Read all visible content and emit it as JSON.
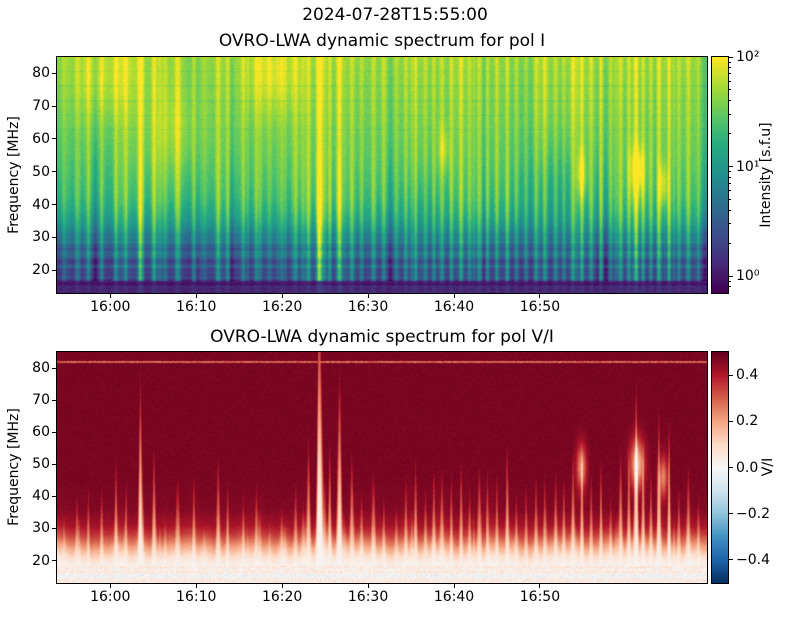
{
  "figure": {
    "suptitle": "2024-07-28T15:55:00",
    "background": "#ffffff",
    "text_color": "#000000"
  },
  "time_axis": {
    "ticks": [
      {
        "pos": 0.082,
        "label": "16:00"
      },
      {
        "pos": 0.2142,
        "label": "16:10"
      },
      {
        "pos": 0.3464,
        "label": "16:20"
      },
      {
        "pos": 0.4786,
        "label": "16:30"
      },
      {
        "pos": 0.6108,
        "label": "16:40"
      },
      {
        "pos": 0.743,
        "label": "16:50"
      }
    ]
  },
  "panels": {
    "pol_i": {
      "title": "OVRO-LWA dynamic spectrum for pol I",
      "ylabel": "Frequency [MHz]",
      "y_ticks": [
        20,
        30,
        40,
        50,
        60,
        70,
        80
      ],
      "y_range": [
        13,
        85
      ],
      "colorbar": {
        "label": "Intensity [s.f.u]",
        "scale": "log",
        "colormap": "viridis",
        "ticks": [
          {
            "label": "10⁰",
            "log": 0
          },
          {
            "label": "10¹",
            "log": 1
          },
          {
            "label": "10²",
            "log": 2
          }
        ],
        "minor_tick_values": [
          0.8,
          0.9,
          2,
          3,
          4,
          5,
          6,
          7,
          8,
          9,
          20,
          30,
          40,
          50,
          60,
          70,
          80,
          90
        ],
        "log_range": [
          -0.155,
          2
        ]
      }
    },
    "pol_vi": {
      "title": "OVRO-LWA dynamic spectrum for pol V/I",
      "ylabel": "Frequency [MHz]",
      "y_ticks": [
        20,
        30,
        40,
        50,
        60,
        70,
        80
      ],
      "y_range": [
        13,
        85
      ],
      "colorbar": {
        "label": "V/I",
        "scale": "linear",
        "colormap": "RdBu_r",
        "ticks": [
          {
            "label": "0.4",
            "value": 0.4
          },
          {
            "label": "0.2",
            "value": 0.2
          },
          {
            "label": "0.0",
            "value": 0.0
          },
          {
            "label": "−0.2",
            "value": -0.2
          },
          {
            "label": "−0.4",
            "value": -0.4
          }
        ],
        "range": [
          -0.5,
          0.5
        ]
      }
    }
  },
  "chart_data": [
    {
      "type": "heatmap",
      "title": "OVRO-LWA dynamic spectrum for pol I",
      "suptitle": "2024-07-28T15:55:00",
      "xlabel": "",
      "ylabel": "Frequency [MHz]",
      "x_tick_labels": [
        "16:00",
        "16:10",
        "16:20",
        "16:30",
        "16:40",
        "16:50"
      ],
      "y_ticks_mhz": [
        20,
        30,
        40,
        50,
        60,
        70,
        80
      ],
      "y_range_mhz": [
        13,
        85
      ],
      "colormap": "viridis",
      "color_scale": "log",
      "color_range_sfu": [
        0.7,
        100
      ],
      "colorbar_label": "Intensity [s.f.u]",
      "grid": false,
      "legend": "colorbar-right",
      "description": "Solar radio dynamic spectrum, Stokes I. Bright broadband green-yellow emission (~20-80 s.f.u) above ~35 MHz, dense narrow vertical type-III radio burst streaks throughout; brightest burst group just after 16:20 reaching ~100 s.f.u across the full band down to ~18 MHz; intensity fades through teal/blue between 20-35 MHz; nearly uniform dark-purple low band below ~17 MHz; bright compact burst patches near 45-55 MHz between 16:45 and 16:55."
    },
    {
      "type": "heatmap",
      "title": "OVRO-LWA dynamic spectrum for pol V/I",
      "xlabel": "",
      "ylabel": "Frequency [MHz]",
      "x_tick_labels": [
        "16:00",
        "16:10",
        "16:20",
        "16:30",
        "16:40",
        "16:50"
      ],
      "y_ticks_mhz": [
        20,
        30,
        40,
        50,
        60,
        70,
        80
      ],
      "y_range_mhz": [
        13,
        85
      ],
      "colormap": "RdBu_r",
      "color_scale": "linear",
      "color_range": [
        -0.5,
        0.5
      ],
      "colorbar_label": "V/I",
      "grid": false,
      "legend": "colorbar-right",
      "description": "Circular polarization fraction V/I. Strongly positive ~+0.5 (dark red) above ~30 MHz; ragged transition to near-zero (white) below ~25 MHz; many narrow white low-polarization spikes rising from the bottom at burst times, tallest just after 16:20 reaching the top of the band; faint white/blue speckled rows below ~18 MHz and a thin light horizontal line near 82 MHz."
    }
  ],
  "colors": {
    "spine": "#000000",
    "viridis_stops": [
      [
        0.0,
        68,
        1,
        84
      ],
      [
        0.13,
        71,
        44,
        122
      ],
      [
        0.25,
        59,
        81,
        139
      ],
      [
        0.38,
        44,
        113,
        142
      ],
      [
        0.5,
        33,
        144,
        141
      ],
      [
        0.63,
        39,
        173,
        129
      ],
      [
        0.75,
        92,
        200,
        99
      ],
      [
        0.88,
        170,
        220,
        50
      ],
      [
        1.0,
        253,
        231,
        37
      ]
    ],
    "rdbu_r_stops": [
      [
        0.0,
        5,
        48,
        97
      ],
      [
        0.1,
        33,
        102,
        172
      ],
      [
        0.2,
        67,
        147,
        195
      ],
      [
        0.3,
        146,
        197,
        222
      ],
      [
        0.4,
        209,
        229,
        240
      ],
      [
        0.5,
        247,
        247,
        247
      ],
      [
        0.6,
        253,
        219,
        199
      ],
      [
        0.7,
        244,
        165,
        130
      ],
      [
        0.8,
        214,
        96,
        77
      ],
      [
        0.9,
        178,
        24,
        43
      ],
      [
        1.0,
        103,
        0,
        31
      ]
    ]
  },
  "render": {
    "seed": 1337,
    "micro_count": 170,
    "top_profile": [
      [
        85,
        1.6
      ],
      [
        75,
        1.54
      ],
      [
        65,
        1.48
      ],
      [
        55,
        1.4
      ],
      [
        47,
        1.3
      ],
      [
        42,
        1.22
      ],
      [
        38,
        1.1
      ],
      [
        35,
        0.97
      ],
      [
        32,
        0.8
      ],
      [
        29,
        0.62
      ],
      [
        26,
        0.47
      ],
      [
        23,
        0.34
      ],
      [
        21,
        0.27
      ],
      [
        19,
        0.2
      ],
      [
        17.8,
        0.14
      ],
      [
        17,
        0.1
      ],
      [
        13,
        0.08
      ]
    ],
    "bottom_profile": [
      [
        85,
        0.475
      ],
      [
        45,
        0.475
      ],
      [
        36,
        0.465
      ],
      [
        31,
        0.42
      ],
      [
        28,
        0.35
      ],
      [
        26,
        0.28
      ],
      [
        24,
        0.2
      ],
      [
        22,
        0.13
      ],
      [
        20.5,
        0.08
      ],
      [
        19,
        0.045
      ],
      [
        18,
        0.03
      ],
      [
        13,
        0.02
      ]
    ],
    "top_dark_rows": [
      80.6,
      76.2,
      71.6,
      67.2,
      62.8
    ],
    "bursts": [
      {
        "x": 0.01,
        "a": 0.35
      },
      {
        "x": 0.03,
        "a": 0.5
      },
      {
        "x": 0.047,
        "a": 0.3
      },
      {
        "x": 0.058,
        "a": -0.3
      },
      {
        "x": 0.068,
        "a": 0.55
      },
      {
        "x": 0.09,
        "a": 0.7
      },
      {
        "x": 0.105,
        "a": 0.4
      },
      {
        "x": 0.126,
        "a": 0.35
      },
      {
        "x": 0.148,
        "a": 0.6
      },
      {
        "x": 0.166,
        "a": 0.35
      },
      {
        "x": 0.186,
        "a": 0.5
      },
      {
        "x": 0.21,
        "a": 0.55
      },
      {
        "x": 0.226,
        "a": 0.3
      },
      {
        "x": 0.246,
        "a": 0.45
      },
      {
        "x": 0.262,
        "a": 0.6
      },
      {
        "x": 0.268,
        "a": -0.28
      },
      {
        "x": 0.286,
        "a": 0.5
      },
      {
        "x": 0.306,
        "a": 0.55
      },
      {
        "x": 0.326,
        "a": 0.4
      },
      {
        "x": 0.346,
        "a": 0.45
      },
      {
        "x": 0.366,
        "a": 0.5
      },
      {
        "x": 0.386,
        "a": 0.6
      },
      {
        "x": 0.404,
        "a": 1.25,
        "s": 2.6
      },
      {
        "x": 0.419,
        "a": 0.7
      },
      {
        "x": 0.433,
        "a": 1.0,
        "s": 2.0
      },
      {
        "x": 0.452,
        "a": 0.55
      },
      {
        "x": 0.468,
        "a": 0.5
      },
      {
        "x": 0.487,
        "a": 0.65
      },
      {
        "x": 0.502,
        "a": 0.5
      },
      {
        "x": 0.512,
        "a": -0.3
      },
      {
        "x": 0.521,
        "a": 0.45
      },
      {
        "x": 0.536,
        "a": 0.6
      },
      {
        "x": 0.551,
        "a": 0.7
      },
      {
        "x": 0.566,
        "a": 0.55
      },
      {
        "x": 0.579,
        "a": 0.65
      },
      {
        "x": 0.592,
        "a": 0.5
      },
      {
        "x": 0.606,
        "a": 0.6
      },
      {
        "x": 0.621,
        "a": 0.7
      },
      {
        "x": 0.634,
        "a": 0.55
      },
      {
        "x": 0.649,
        "a": 0.6
      },
      {
        "x": 0.658,
        "a": -0.25
      },
      {
        "x": 0.662,
        "a": 0.5
      },
      {
        "x": 0.676,
        "a": 0.55
      },
      {
        "x": 0.691,
        "a": 0.65
      },
      {
        "x": 0.706,
        "a": 0.5
      },
      {
        "x": 0.721,
        "a": 0.55
      },
      {
        "x": 0.736,
        "a": 0.6
      },
      {
        "x": 0.751,
        "a": 0.5
      },
      {
        "x": 0.766,
        "a": 0.55
      },
      {
        "x": 0.779,
        "a": 0.6
      },
      {
        "x": 0.793,
        "a": 0.7
      },
      {
        "x": 0.807,
        "a": 0.8
      },
      {
        "x": 0.821,
        "a": 0.6
      },
      {
        "x": 0.836,
        "a": 0.65
      },
      {
        "x": 0.843,
        "a": -0.28
      },
      {
        "x": 0.851,
        "a": 0.6
      },
      {
        "x": 0.866,
        "a": 0.65
      },
      {
        "x": 0.879,
        "a": 0.75
      },
      {
        "x": 0.891,
        "a": 0.9
      },
      {
        "x": 0.901,
        "a": 0.8
      },
      {
        "x": 0.913,
        "a": 0.65
      },
      {
        "x": 0.926,
        "a": 0.6
      },
      {
        "x": 0.941,
        "a": 0.65
      },
      {
        "x": 0.956,
        "a": 0.55
      },
      {
        "x": 0.971,
        "a": 0.6
      },
      {
        "x": 0.986,
        "a": 0.5
      },
      {
        "x": 0.998,
        "a": -0.35,
        "s": 2.0
      }
    ],
    "blobs": [
      {
        "x": 0.892,
        "f": 50,
        "a": 0.62,
        "sx": 5,
        "sf": 5.5,
        "vi": 1
      },
      {
        "x": 0.806,
        "f": 49,
        "a": 0.5,
        "sx": 3.5,
        "sf": 5,
        "vi": 1
      },
      {
        "x": 0.932,
        "f": 46,
        "a": 0.45,
        "sx": 3,
        "sf": 4.5,
        "vi": 1
      },
      {
        "x": 0.594,
        "f": 57,
        "a": 0.3,
        "sx": 4,
        "sf": 5,
        "vi": 0
      },
      {
        "x": 0.07,
        "f": 78,
        "a": 0.22,
        "sx": 25,
        "sf": 9,
        "vi": 0
      },
      {
        "x": 0.33,
        "f": 79,
        "a": 0.25,
        "sx": 18,
        "sf": 8,
        "vi": 0
      },
      {
        "x": 0.18,
        "f": 62,
        "a": 0.18,
        "sx": 20,
        "sf": 10,
        "vi": 0
      },
      {
        "x": 0.77,
        "f": 44,
        "a": -0.2,
        "sx": 22,
        "sf": 10,
        "vi": 0
      },
      {
        "x": 0.56,
        "f": 40,
        "a": -0.12,
        "sx": 15,
        "sf": 8,
        "vi": 0
      }
    ]
  }
}
